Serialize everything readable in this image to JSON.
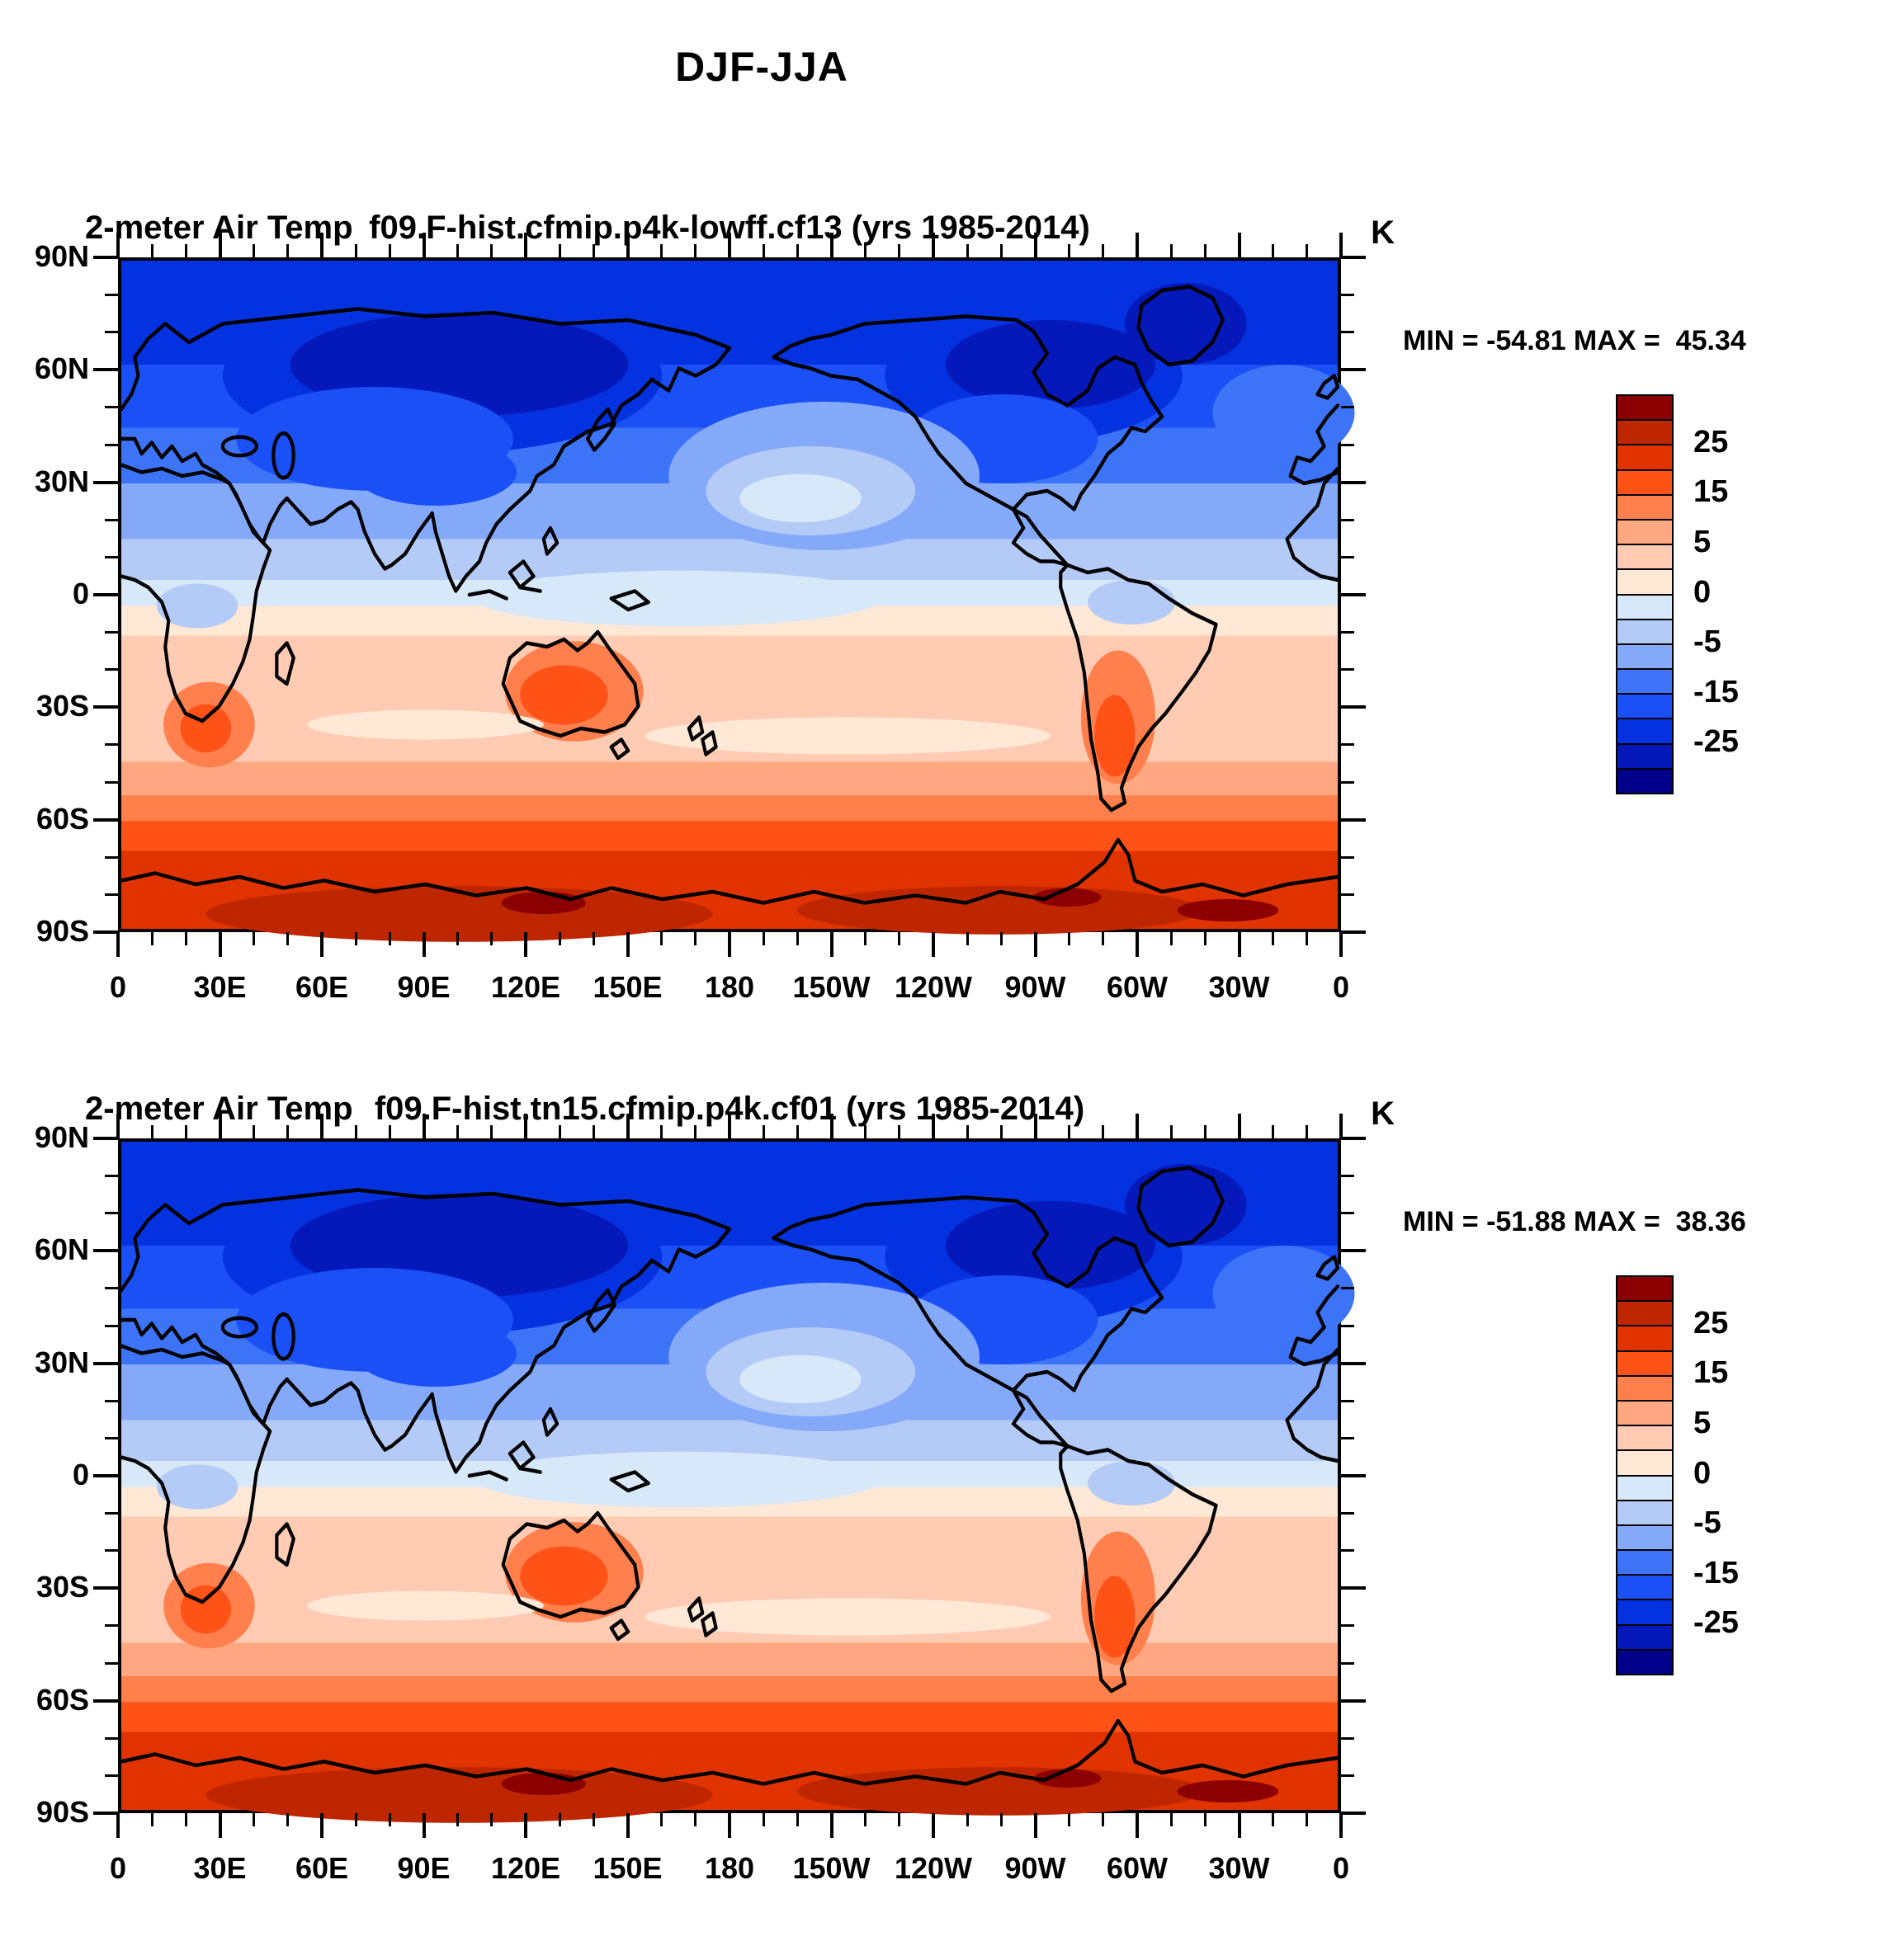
{
  "main_title": "DJF-JJA",
  "panels": [
    {
      "title_left": "2-meter Air Temp",
      "title_center": "f09.F-hist.cfmip.p4k-lowff.cf13 (yrs 1985-2014)",
      "unit": "K",
      "minmax_text": "MIN = -54.81 MAX =  45.34"
    },
    {
      "title_left": "2-meter Air Temp",
      "title_center": "f09.F-hist.tn15.cfmip.p4k.cf01 (yrs 1985-2014)",
      "unit": "K",
      "minmax_text": "MIN = -51.88 MAX =  38.36"
    }
  ],
  "axes": {
    "lat_major_labels": [
      "90N",
      "60N",
      "30N",
      "0",
      "30S",
      "60S",
      "90S"
    ],
    "lon_major_labels": [
      "0",
      "30E",
      "60E",
      "90E",
      "120E",
      "150E",
      "180",
      "150W",
      "120W",
      "90W",
      "60W",
      "30W",
      "0"
    ],
    "minor_tick_step_deg": 10,
    "major_tick_step_deg": 30
  },
  "colorbar": {
    "colors_top_to_bottom": [
      "#8B0000",
      "#BE2600",
      "#E13300",
      "#FF5217",
      "#FF7F4D",
      "#FFA781",
      "#FFCBB3",
      "#FFE8D6",
      "#D7E8F9",
      "#B5CBF7",
      "#84A9F9",
      "#3D73F7",
      "#1A50F6",
      "#0532E1",
      "#0519BB",
      "#00008B"
    ],
    "tick_labels": [
      "25",
      "15",
      "5",
      "0",
      "-5",
      "-15",
      "-25"
    ],
    "tick_boundary_index": [
      2,
      4,
      6,
      8,
      10,
      12,
      14
    ]
  },
  "chart_data": [
    {
      "type": "heatmap",
      "title": "DJF-JJA",
      "panel": "top",
      "field": "2-meter Air Temp",
      "case_label": "f09.F-hist.cfmip.p4k-lowff.cf13 (yrs 1985-2014)",
      "units": "K",
      "min": -54.81,
      "max": 45.34,
      "contour_levels": [
        -30,
        -25,
        -20,
        -15,
        -10,
        -5,
        -2,
        0,
        2,
        5,
        10,
        15,
        20,
        25,
        30
      ],
      "x_axis": {
        "label_ticks": [
          "0",
          "30E",
          "60E",
          "90E",
          "120E",
          "150E",
          "180",
          "150W",
          "120W",
          "90W",
          "60W",
          "30W",
          "0"
        ],
        "range_deg": [
          0,
          360
        ]
      },
      "y_axis": {
        "label_ticks": [
          "90N",
          "60N",
          "30N",
          "0",
          "30S",
          "60S",
          "90S"
        ],
        "range_deg": [
          90,
          -90
        ]
      },
      "pattern_summary": "DJF minus JJA 2m air temperature: strong negative (dark blue, below -25 K) over high-latitude Northern Hemisphere continents (Siberia, Canada, Greenland); moderate negative over NH oceans; near zero along equator; positive (orange) over Southern Hemisphere land (Australia, southern Africa, Patagonia, 5 to 20 K); strongly positive (dark red, above 25 K) over Antarctica."
    },
    {
      "type": "heatmap",
      "title": "DJF-JJA",
      "panel": "bottom",
      "field": "2-meter Air Temp",
      "case_label": "f09.F-hist.tn15.cfmip.p4k.cf01 (yrs 1985-2014)",
      "units": "K",
      "min": -51.88,
      "max": 38.36,
      "contour_levels": [
        -30,
        -25,
        -20,
        -15,
        -10,
        -5,
        -2,
        0,
        2,
        5,
        10,
        15,
        20,
        25,
        30
      ],
      "x_axis": {
        "label_ticks": [
          "0",
          "30E",
          "60E",
          "90E",
          "120E",
          "150E",
          "180",
          "150W",
          "120W",
          "90W",
          "60W",
          "30W",
          "0"
        ],
        "range_deg": [
          0,
          360
        ]
      },
      "y_axis": {
        "label_ticks": [
          "90N",
          "60N",
          "30N",
          "0",
          "30S",
          "60S",
          "90S"
        ],
        "range_deg": [
          90,
          -90
        ]
      },
      "pattern_summary": "Same seasonal-difference pattern as top panel: cold (blue) Northern Hemisphere with darkest values over Siberia and Canada, warm (red) Southern Hemisphere with maximum over Antarctica."
    }
  ]
}
